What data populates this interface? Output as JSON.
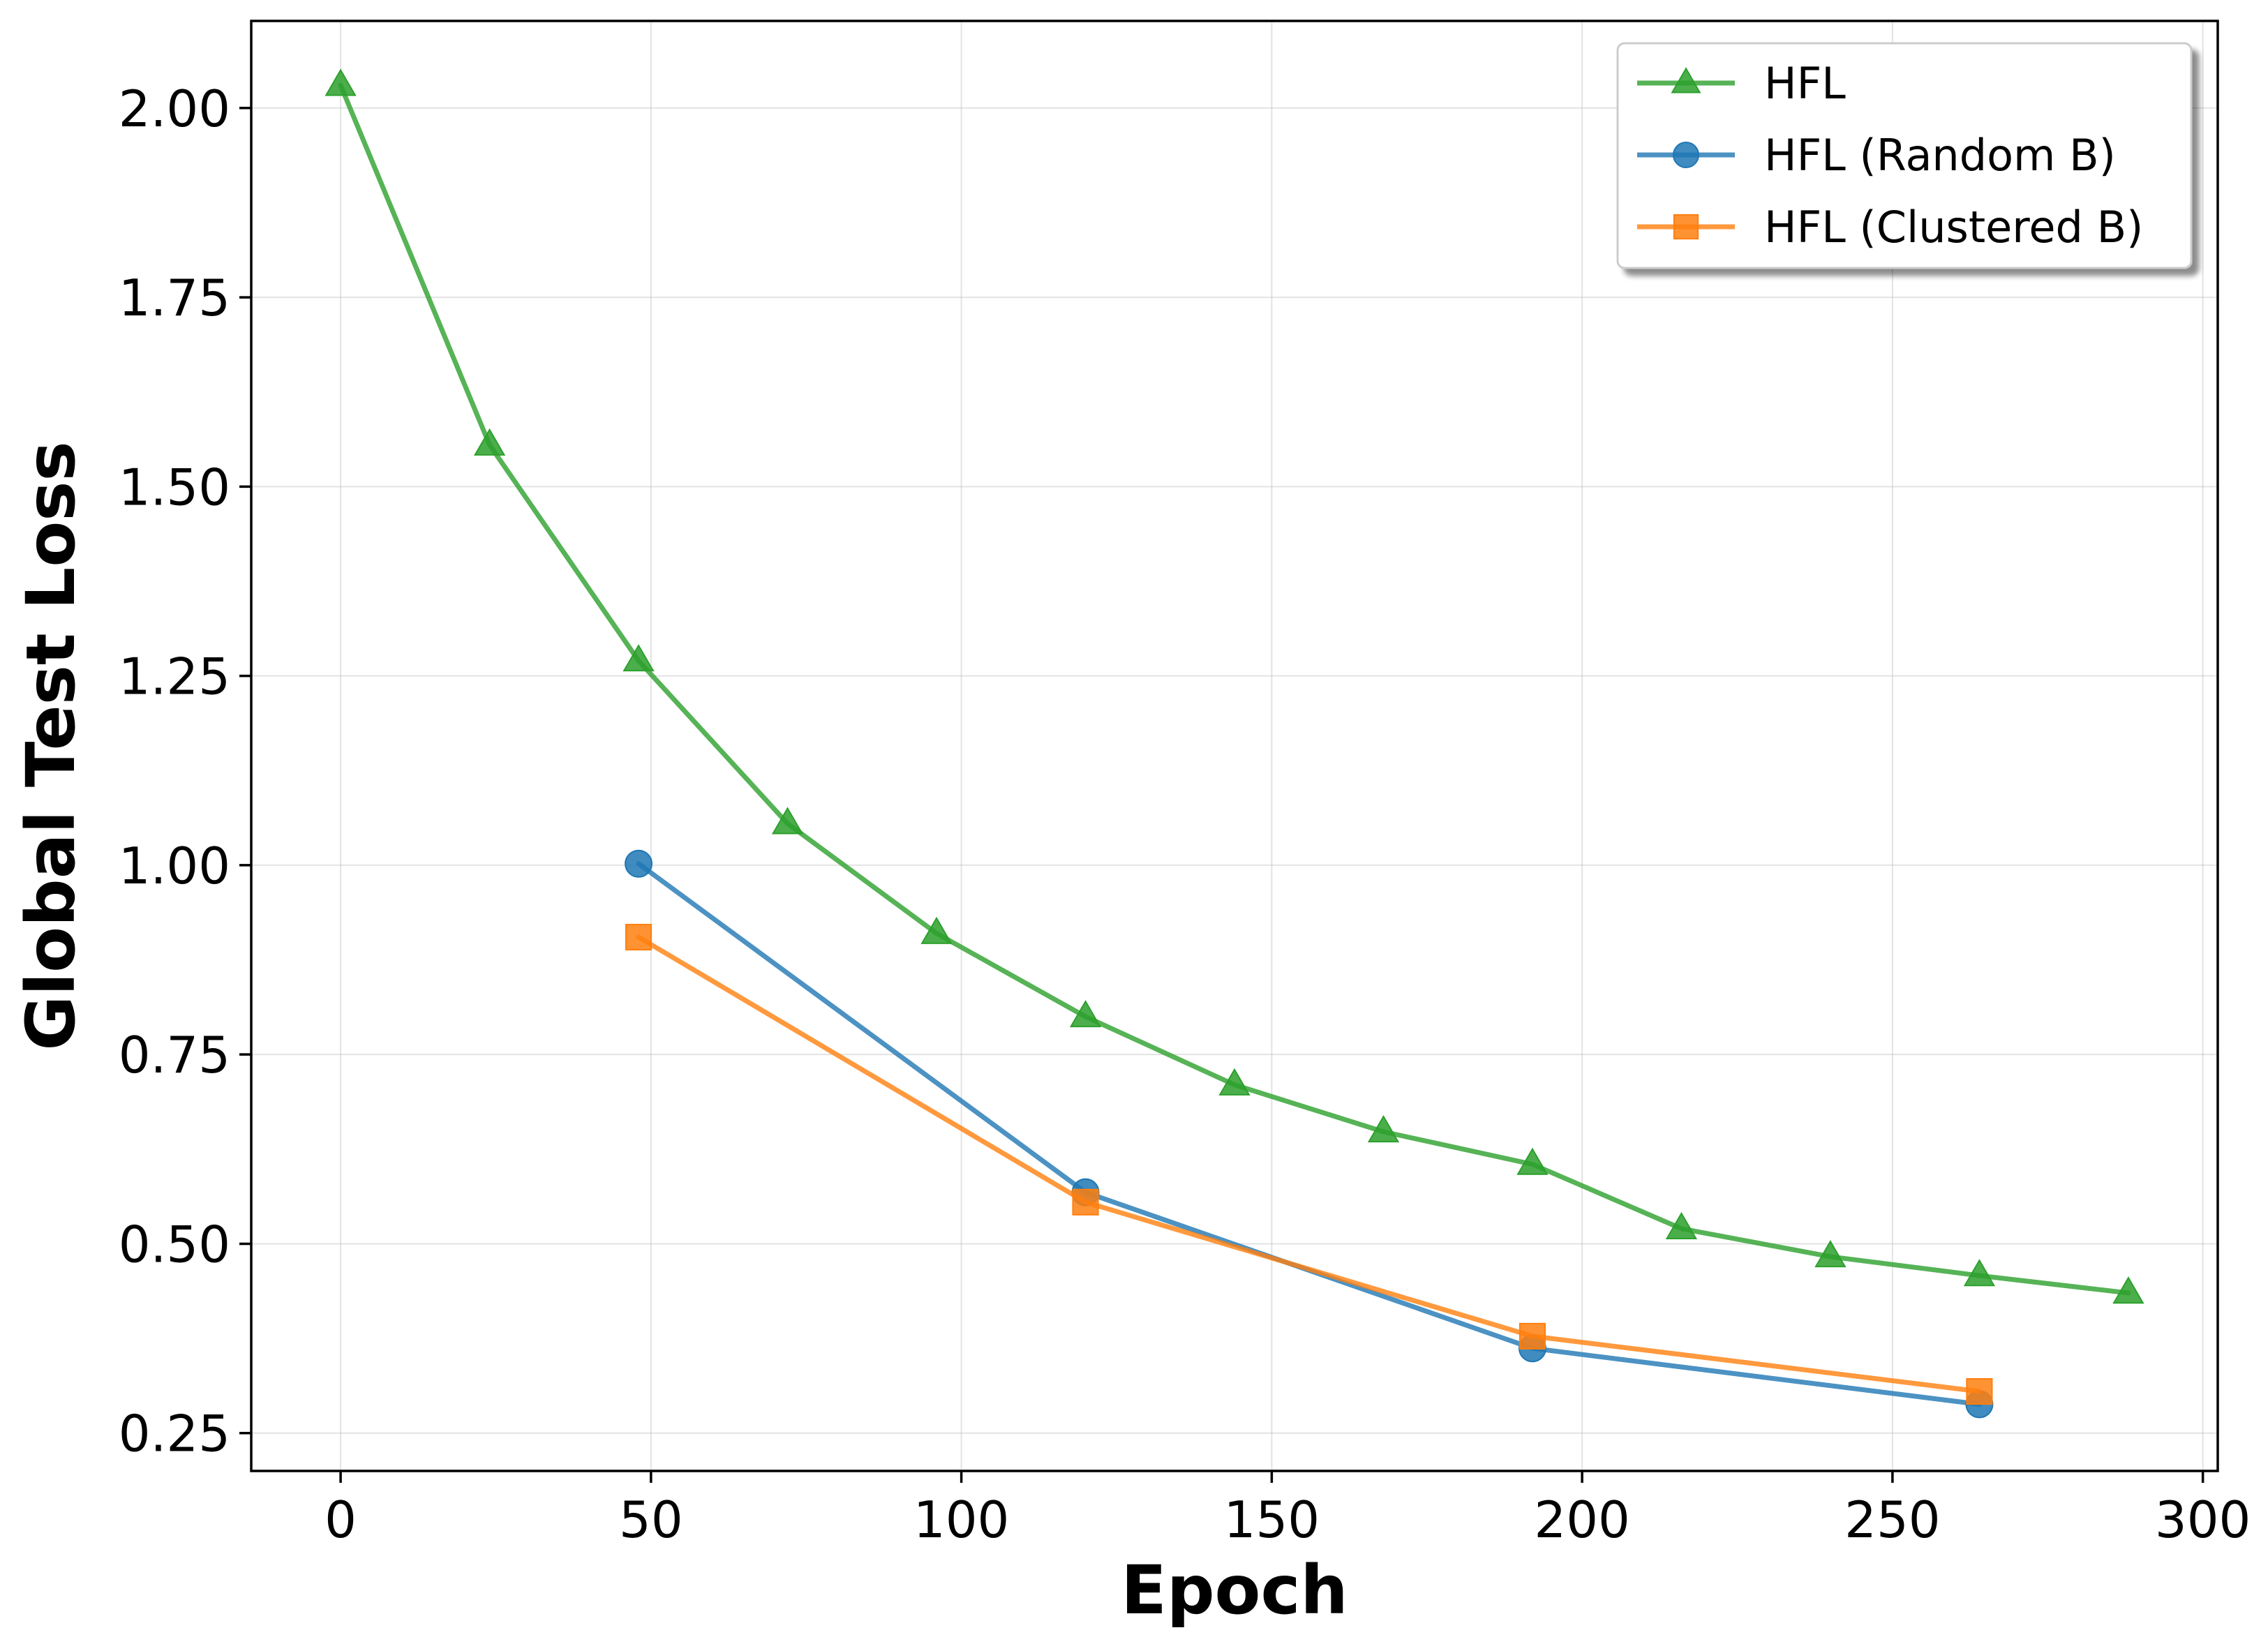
{
  "chart_data": {
    "type": "line",
    "title": "",
    "xlabel": "Epoch",
    "ylabel": "Global Test Loss",
    "xlim": [
      -14.4,
      302.4
    ],
    "ylim": [
      0.2,
      2.115
    ],
    "xticks": [
      0,
      50,
      100,
      150,
      200,
      250,
      300
    ],
    "xtick_labels": [
      "0",
      "50",
      "100",
      "150",
      "200",
      "250",
      "300"
    ],
    "yticks": [
      0.25,
      0.5,
      0.75,
      1.0,
      1.25,
      1.5,
      1.75,
      2.0
    ],
    "ytick_labels": [
      "0.25",
      "0.50",
      "0.75",
      "1.00",
      "1.25",
      "1.50",
      "1.75",
      "2.00"
    ],
    "grid": true,
    "legend_position": "top-right",
    "series": [
      {
        "name": "HFL",
        "color": "#2ca02c",
        "marker": "triangle",
        "x": [
          0,
          24,
          48,
          72,
          96,
          120,
          144,
          168,
          192,
          216,
          240,
          264,
          288
        ],
        "y": [
          2.03,
          1.555,
          1.27,
          1.055,
          0.91,
          0.8,
          0.71,
          0.648,
          0.605,
          0.52,
          0.483,
          0.458,
          0.435
        ]
      },
      {
        "name": "HFL (Random B)",
        "color": "#1f77b4",
        "marker": "circle",
        "x": [
          48,
          120,
          192,
          264
        ],
        "y": [
          1.002,
          0.568,
          0.362,
          0.288
        ]
      },
      {
        "name": "HFL (Clustered B)",
        "color": "#ff7f0e",
        "marker": "square",
        "x": [
          48,
          120,
          192,
          264
        ],
        "y": [
          0.905,
          0.555,
          0.378,
          0.305
        ]
      }
    ]
  }
}
